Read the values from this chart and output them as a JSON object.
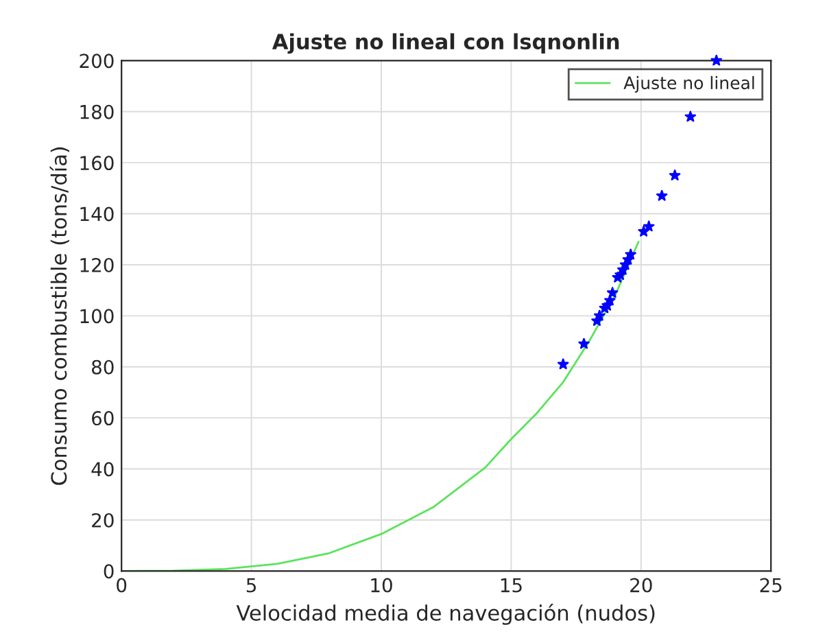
{
  "chart_data": {
    "type": "scatter",
    "title": "Ajuste no lineal con lsqnonlin",
    "xlabel": "Velocidad media de navegación (nudos)",
    "ylabel": "Consumo combustible (tons/día)",
    "xlim": [
      0,
      25
    ],
    "xticks": [
      0,
      5,
      10,
      15,
      20,
      25
    ],
    "ylim": [
      0,
      200
    ],
    "yticks": [
      0,
      20,
      40,
      60,
      80,
      100,
      120,
      140,
      160,
      180,
      200
    ],
    "grid": true,
    "legend": "top right",
    "series": [
      {
        "type": "line",
        "name": "Ajuste no lineal",
        "color": "#5be35b",
        "marker": "none",
        "x": [
          0,
          2,
          4,
          6,
          8,
          10,
          12,
          14,
          15,
          16,
          17,
          18,
          19,
          19.9
        ],
        "values": [
          0,
          0.1,
          0.8,
          2.8,
          7,
          14.5,
          25,
          40.5,
          51.7,
          62,
          74,
          90,
          108,
          129
        ]
      },
      {
        "color": "#0000ff",
        "marker": "star",
        "x": [
          22.9,
          21.9,
          21.3,
          20.8,
          20.3,
          20.1,
          19.6,
          19.5,
          19.4,
          19.3,
          19.2,
          19.1,
          18.9,
          18.8,
          18.7,
          18.6,
          18.4,
          18.3,
          17.8,
          17.0
        ],
        "values": [
          200,
          178,
          155,
          147,
          135,
          133,
          124,
          122,
          120,
          118,
          116,
          115,
          109,
          106,
          104,
          103,
          100,
          98,
          89,
          81
        ]
      }
    ]
  }
}
